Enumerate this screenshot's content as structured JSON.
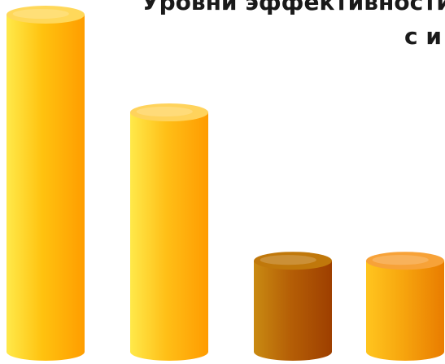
{
  "chart_data": {
    "type": "bar",
    "title_lines": [
      "Уровни эффективности при труд",
      "с и"
    ],
    "categories": [
      "",
      "",
      "",
      ""
    ],
    "values": [
      100,
      71,
      27,
      27
    ],
    "ylim": [
      0,
      100
    ],
    "grid": false,
    "colors": [
      {
        "light": "#ffe94a",
        "mid": "#ffc20f",
        "dark": "#ff9d00",
        "top": "#ffd85a"
      },
      {
        "light": "#ffe94a",
        "mid": "#ffbf17",
        "dark": "#ff9b00",
        "top": "#ffd35c"
      },
      {
        "light": "#c98a12",
        "mid": "#b55f06",
        "dark": "#9e3f00",
        "top": "#c0780b"
      },
      {
        "light": "#ffc51f",
        "mid": "#f7a60e",
        "dark": "#e97c00",
        "top": "#f7a238"
      }
    ]
  }
}
